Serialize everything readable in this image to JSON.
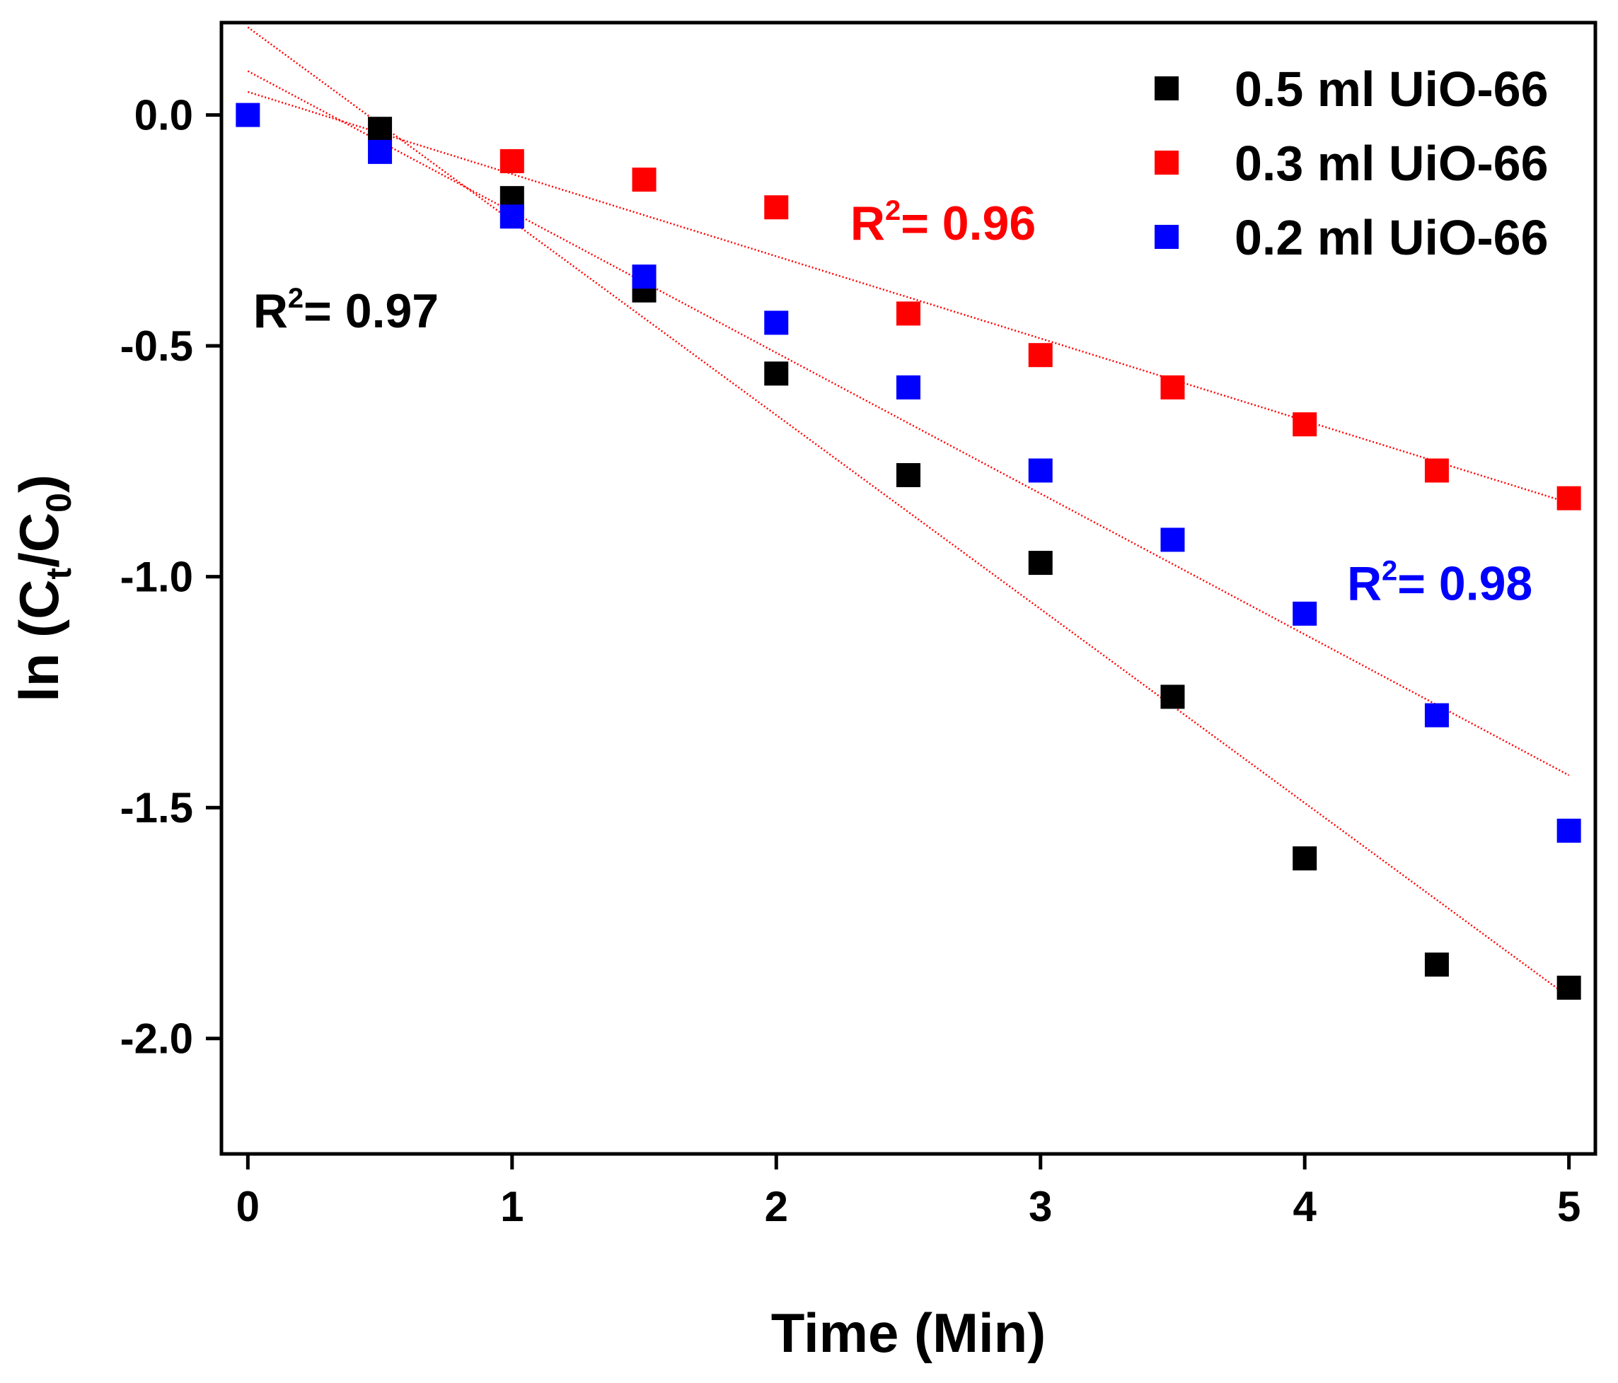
{
  "chart_data": {
    "type": "scatter",
    "xlabel": "Time (Min)",
    "ylabel": {
      "prefix": "ln (C",
      "sub1": "t",
      "mid": "/C",
      "sub2": "0",
      "suffix": ")"
    },
    "xlim": [
      -0.1,
      5.1
    ],
    "ylim": [
      -2.25,
      0.2
    ],
    "xticks": [
      0,
      1,
      2,
      3,
      4,
      5
    ],
    "xtick_labels": [
      "0",
      "1",
      "2",
      "3",
      "4",
      "5"
    ],
    "yticks": [
      0.0,
      -0.5,
      -1.0,
      -1.5,
      -2.0
    ],
    "ytick_labels": [
      "0.0",
      "-0.5",
      "-1.0",
      "-1.5",
      "-2.0"
    ],
    "grid": false,
    "legend_position": "top-right",
    "series": [
      {
        "name": "0.5 ml UiO-66",
        "color": "#000000",
        "x": [
          0.5,
          1.0,
          1.5,
          2.0,
          2.5,
          3.0,
          3.5,
          4.0,
          4.5,
          5.0
        ],
        "y": [
          -0.03,
          -0.18,
          -0.38,
          -0.56,
          -0.78,
          -0.97,
          -1.26,
          -1.61,
          -1.84,
          -1.89
        ],
        "fit": {
          "x": [
            0,
            5
          ],
          "y": [
            0.19,
            -1.91
          ]
        }
      },
      {
        "name": "0.3 ml UiO-66",
        "color": "#ff0000",
        "x": [
          1.0,
          1.5,
          2.0,
          2.5,
          3.0,
          3.5,
          4.0,
          4.5,
          5.0
        ],
        "y": [
          -0.1,
          -0.14,
          -0.2,
          -0.43,
          -0.52,
          -0.59,
          -0.67,
          -0.77,
          -0.83
        ],
        "fit": {
          "x": [
            0,
            5
          ],
          "y": [
            0.05,
            -0.84
          ]
        }
      },
      {
        "name": "0.2 ml UiO-66",
        "color": "#0000ff",
        "x": [
          0.0,
          0.5,
          1.0,
          1.5,
          2.0,
          2.5,
          3.0,
          3.5,
          4.0,
          4.5,
          5.0
        ],
        "y": [
          0.0,
          -0.08,
          -0.22,
          -0.35,
          -0.45,
          -0.59,
          -0.77,
          -0.92,
          -1.08,
          -1.3,
          -1.55
        ],
        "fit": {
          "x": [
            0,
            5
          ],
          "y": [
            0.095,
            -1.43
          ]
        }
      }
    ],
    "annotations": [
      {
        "base": "R",
        "sup": "2",
        "rest": "= 0.97",
        "color": "#000000",
        "x": 0.02,
        "y": -0.46
      },
      {
        "base": "R",
        "sup": "2",
        "rest": "= 0.96",
        "color": "#ff0000",
        "x": 2.28,
        "y": -0.27
      },
      {
        "base": "R",
        "sup": "2",
        "rest": "= 0.98",
        "color": "#0000ff",
        "x": 4.16,
        "y": -1.05
      }
    ],
    "fit_line_color": "#ff0000"
  }
}
